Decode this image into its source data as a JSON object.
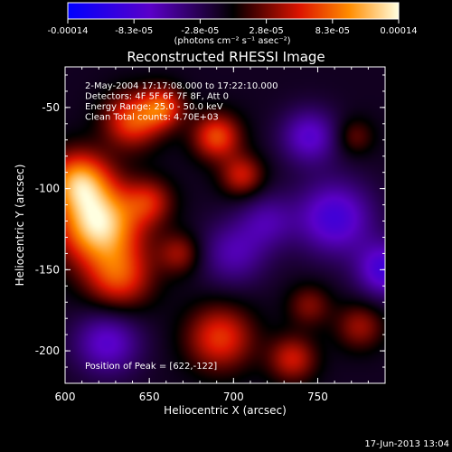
{
  "colorbar": {
    "tick_labels": [
      "-0.00014",
      "-8.3e-05",
      "-2.8e-05",
      "2.8e-05",
      "8.3e-05",
      "0.00014"
    ],
    "unit_label": "(photons cm⁻² s⁻¹ asec⁻²)",
    "min": -0.00014,
    "max": 0.00014
  },
  "chart_data": {
    "type": "heatmap",
    "title": "Reconstructed RHESSI Image",
    "xlabel": "Heliocentric X (arcsec)",
    "ylabel": "Heliocentric Y (arcsec)",
    "xlim": [
      600,
      790
    ],
    "ylim": [
      -220,
      -25
    ],
    "x_ticks": [
      600,
      650,
      700,
      750
    ],
    "y_ticks": [
      -50,
      -100,
      -150,
      -200
    ],
    "info_lines": [
      "2-May-2004 17:17:08.000 to 17:22:10.000",
      "Detectors: 4F 5F 6F 7F 8F, Att 0",
      "Energy Range: 25.0 - 50.0 keV",
      "Clean     Total counts: 4.70E+03"
    ],
    "peak_label": "Position of Peak = [622,-122]",
    "peak_position": [
      622,
      -122
    ],
    "sources": [
      {
        "x": 620,
        "y": -122,
        "amp": 1.0,
        "sigma": 17
      },
      {
        "x": 608,
        "y": -95,
        "amp": 0.75,
        "sigma": 13
      },
      {
        "x": 632,
        "y": -155,
        "amp": 0.55,
        "sigma": 14
      },
      {
        "x": 640,
        "y": -58,
        "amp": 0.6,
        "sigma": 12
      },
      {
        "x": 658,
        "y": -50,
        "amp": 0.55,
        "sigma": 9
      },
      {
        "x": 690,
        "y": -68,
        "amp": 0.6,
        "sigma": 10
      },
      {
        "x": 705,
        "y": -92,
        "amp": 0.45,
        "sigma": 9
      },
      {
        "x": 650,
        "y": -108,
        "amp": 0.4,
        "sigma": 10
      },
      {
        "x": 668,
        "y": -140,
        "amp": 0.35,
        "sigma": 9
      },
      {
        "x": 692,
        "y": -192,
        "amp": 0.55,
        "sigma": 14
      },
      {
        "x": 735,
        "y": -205,
        "amp": 0.45,
        "sigma": 10
      },
      {
        "x": 745,
        "y": -172,
        "amp": 0.3,
        "sigma": 9
      },
      {
        "x": 775,
        "y": -185,
        "amp": 0.35,
        "sigma": 10
      },
      {
        "x": 772,
        "y": -68,
        "amp": 0.25,
        "sigma": 8
      },
      {
        "x": 760,
        "y": -118,
        "amp": -0.55,
        "sigma": 16
      },
      {
        "x": 790,
        "y": -150,
        "amp": -0.55,
        "sigma": 12
      },
      {
        "x": 745,
        "y": -68,
        "amp": -0.45,
        "sigma": 12
      },
      {
        "x": 625,
        "y": -195,
        "amp": -0.45,
        "sigma": 14
      },
      {
        "x": 700,
        "y": -140,
        "amp": -0.35,
        "sigma": 14
      },
      {
        "x": 720,
        "y": -120,
        "amp": -0.3,
        "sigma": 12
      }
    ]
  },
  "footer": {
    "date": "17-Jun-2013 13:04"
  }
}
